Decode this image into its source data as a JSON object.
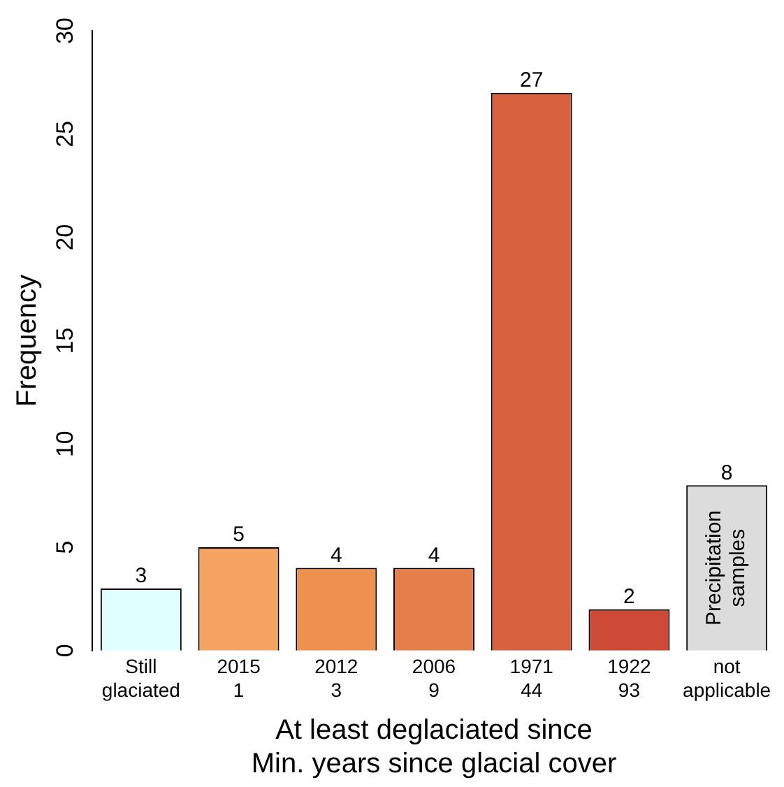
{
  "chart_data": {
    "type": "bar",
    "categories": [
      "Still\nglaciated",
      "2015\n1",
      "2012\n3",
      "2006\n9",
      "1971\n44",
      "1922\n93",
      "not\napplicable"
    ],
    "values": [
      3,
      5,
      4,
      4,
      27,
      2,
      8
    ],
    "colors": [
      "#e0ffff",
      "#f4a460",
      "#ee9150",
      "#e57f4c",
      "#d8623f",
      "#cd4a36",
      "#dcdcdc"
    ],
    "ylim": [
      0,
      30
    ],
    "yticks": [
      0,
      5,
      10,
      15,
      20,
      25,
      30
    ],
    "xlabel": "At least deglaciated since\nMin. years since glacial cover",
    "ylabel": "Frequency",
    "data_labels": true,
    "grid": false,
    "legend": false,
    "annotations": [
      "Precipitation\nsamples"
    ]
  }
}
